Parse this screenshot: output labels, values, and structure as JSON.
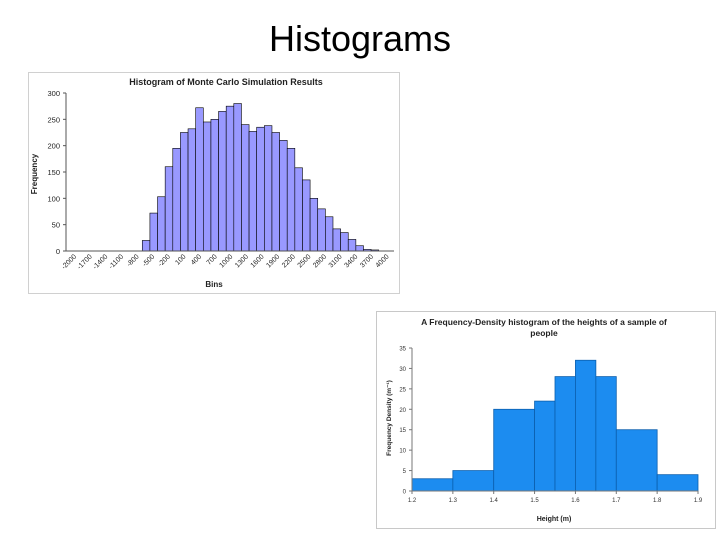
{
  "slide": {
    "title": "Histograms"
  },
  "chart_data": [
    {
      "type": "bar",
      "title": "Histogram of Monte Carlo Simulation Results",
      "xlabel": "Bins",
      "ylabel": "Frequency",
      "ylim": [
        0,
        300
      ],
      "yticks": [
        0,
        50,
        100,
        150,
        200,
        250,
        300
      ],
      "xtick_labels": [
        "-2000",
        "-1700",
        "-1400",
        "-1100",
        "-800",
        "-500",
        "-200",
        "100",
        "400",
        "700",
        "1000",
        "1300",
        "1600",
        "1900",
        "2200",
        "2500",
        "2800",
        "3100",
        "3400",
        "3700",
        "4000"
      ],
      "values": [
        0,
        0,
        0,
        0,
        0,
        0,
        0,
        0,
        0,
        0,
        20,
        72,
        103,
        160,
        195,
        225,
        232,
        272,
        245,
        250,
        265,
        275,
        280,
        240,
        227,
        235,
        238,
        225,
        210,
        195,
        158,
        135,
        100,
        80,
        65,
        42,
        35,
        22,
        10,
        3,
        2,
        0,
        0
      ],
      "bar_color": "#9999ff",
      "grid": false,
      "legend": "none"
    },
    {
      "type": "bar",
      "title": "A Frequency-Density histogram of the heights of a sample of people",
      "xlabel": "Height (m)",
      "ylabel": "Frequency Density (m⁻¹)",
      "xlim": [
        1.2,
        1.9
      ],
      "ylim": [
        0,
        35
      ],
      "yticks": [
        0,
        5,
        10,
        15,
        20,
        25,
        30,
        35
      ],
      "xticks": [
        1.2,
        1.3,
        1.4,
        1.5,
        1.6,
        1.7,
        1.8,
        1.9
      ],
      "xtick_labels": [
        "1.2",
        "1.3",
        "1.4",
        "1.5",
        "1.6",
        "1.7",
        "1.8",
        "1.9"
      ],
      "ytick_labels": [
        "0",
        "5",
        "10",
        "15",
        "20",
        "25",
        "30",
        "35"
      ],
      "bins": [
        {
          "x0": 1.2,
          "x1": 1.3,
          "value": 3
        },
        {
          "x0": 1.3,
          "x1": 1.4,
          "value": 5
        },
        {
          "x0": 1.4,
          "x1": 1.5,
          "value": 20
        },
        {
          "x0": 1.5,
          "x1": 1.55,
          "value": 22
        },
        {
          "x0": 1.55,
          "x1": 1.6,
          "value": 28
        },
        {
          "x0": 1.6,
          "x1": 1.65,
          "value": 32
        },
        {
          "x0": 1.65,
          "x1": 1.7,
          "value": 28
        },
        {
          "x0": 1.7,
          "x1": 1.8,
          "value": 15
        },
        {
          "x0": 1.8,
          "x1": 1.9,
          "value": 4
        }
      ],
      "bar_color": "#1c8cf0",
      "grid": false,
      "legend": "none"
    }
  ]
}
